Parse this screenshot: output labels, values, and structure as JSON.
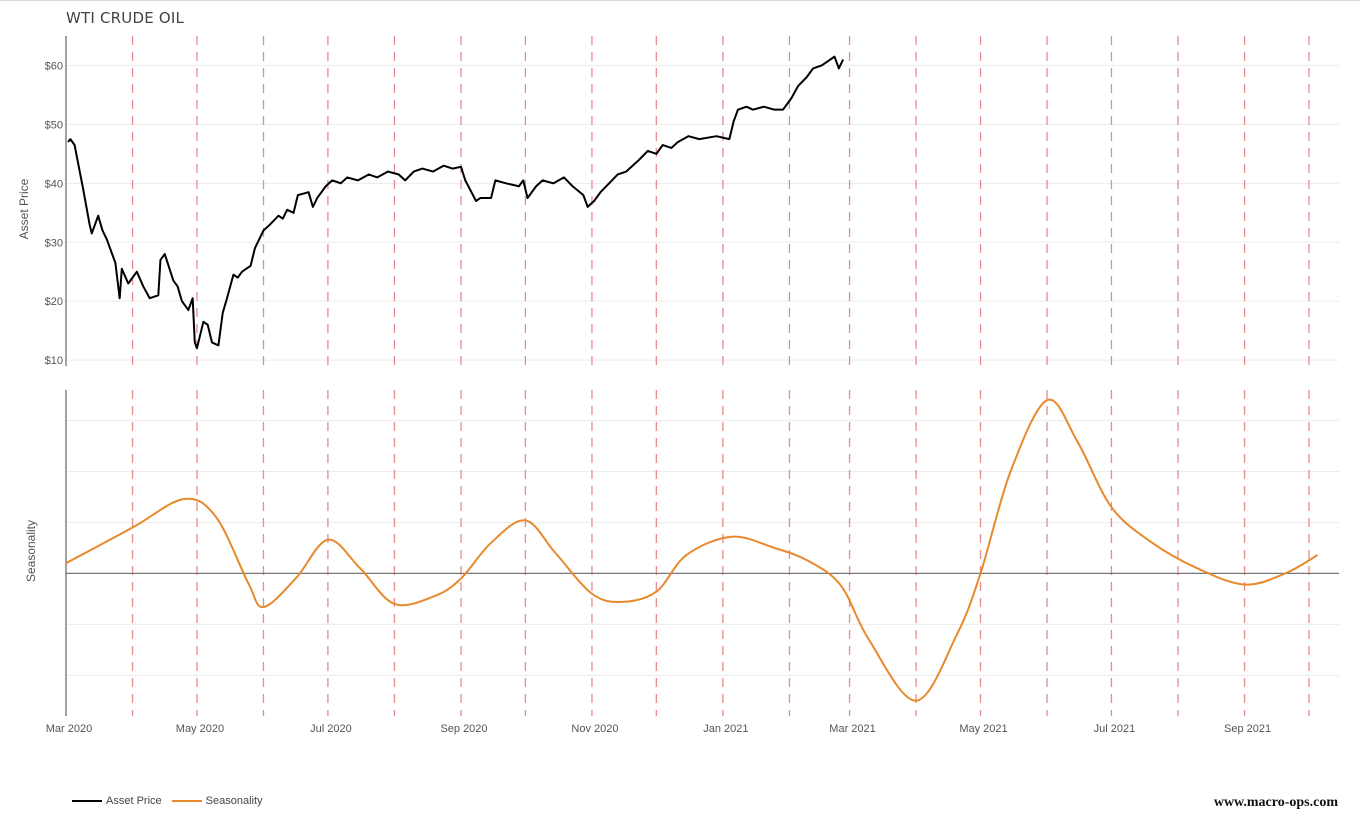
{
  "title": "WTI CRUDE OIL",
  "watermark": "www.macro-ops.com",
  "colors": {
    "asset_price": "#000000",
    "seasonality": "#e8892c",
    "month_marker": "#e58c8c",
    "grid": "#ececec",
    "zero_line": "#777777"
  },
  "chart_data": [
    {
      "type": "line",
      "panel": "top",
      "ylabel": "Asset Price",
      "y_ticks": [
        "$10",
        "$20",
        "$30",
        "$40",
        "$50",
        "$60"
      ],
      "ylim": [
        9,
        65
      ],
      "xlim": [
        "2020-03-01",
        "2021-10-15"
      ],
      "grid": true,
      "series": [
        {
          "name": "Asset Price",
          "points": [
            [
              "2020-03-02",
              47.0
            ],
            [
              "2020-03-03",
              47.5
            ],
            [
              "2020-03-05",
              46.5
            ],
            [
              "2020-03-09",
              39.0
            ],
            [
              "2020-03-12",
              33.0
            ],
            [
              "2020-03-13",
              31.5
            ],
            [
              "2020-03-16",
              34.5
            ],
            [
              "2020-03-18",
              32.0
            ],
            [
              "2020-03-20",
              30.5
            ],
            [
              "2020-03-24",
              26.5
            ],
            [
              "2020-03-26",
              20.5
            ],
            [
              "2020-03-27",
              25.5
            ],
            [
              "2020-03-30",
              23.0
            ],
            [
              "2020-04-03",
              25.0
            ],
            [
              "2020-04-06",
              22.5
            ],
            [
              "2020-04-09",
              20.5
            ],
            [
              "2020-04-13",
              21.0
            ],
            [
              "2020-04-14",
              27.0
            ],
            [
              "2020-04-16",
              28.0
            ],
            [
              "2020-04-20",
              23.5
            ],
            [
              "2020-04-22",
              22.5
            ],
            [
              "2020-04-24",
              20.0
            ],
            [
              "2020-04-27",
              18.5
            ],
            [
              "2020-04-29",
              20.5
            ],
            [
              "2020-04-30",
              13.0
            ],
            [
              "2020-05-01",
              12.0
            ],
            [
              "2020-05-04",
              16.5
            ],
            [
              "2020-05-06",
              16.0
            ],
            [
              "2020-05-08",
              13.0
            ],
            [
              "2020-05-11",
              12.5
            ],
            [
              "2020-05-13",
              18.0
            ],
            [
              "2020-05-15",
              20.5
            ],
            [
              "2020-05-18",
              24.5
            ],
            [
              "2020-05-20",
              24.0
            ],
            [
              "2020-05-22",
              25.0
            ],
            [
              "2020-05-26",
              26.0
            ],
            [
              "2020-05-28",
              29.0
            ],
            [
              "2020-06-01",
              32.0
            ],
            [
              "2020-06-04",
              33.0
            ],
            [
              "2020-06-08",
              34.5
            ],
            [
              "2020-06-10",
              34.0
            ],
            [
              "2020-06-12",
              35.5
            ],
            [
              "2020-06-15",
              35.0
            ],
            [
              "2020-06-17",
              38.0
            ],
            [
              "2020-06-22",
              38.5
            ],
            [
              "2020-06-24",
              36.0
            ],
            [
              "2020-06-26",
              37.5
            ],
            [
              "2020-06-30",
              39.5
            ],
            [
              "2020-07-03",
              40.5
            ],
            [
              "2020-07-07",
              40.0
            ],
            [
              "2020-07-10",
              41.0
            ],
            [
              "2020-07-15",
              40.5
            ],
            [
              "2020-07-20",
              41.5
            ],
            [
              "2020-07-24",
              41.0
            ],
            [
              "2020-07-29",
              42.0
            ],
            [
              "2020-08-03",
              41.5
            ],
            [
              "2020-08-06",
              40.5
            ],
            [
              "2020-08-10",
              42.0
            ],
            [
              "2020-08-14",
              42.5
            ],
            [
              "2020-08-19",
              42.0
            ],
            [
              "2020-08-24",
              43.0
            ],
            [
              "2020-08-28",
              42.5
            ],
            [
              "2020-09-01",
              42.8
            ],
            [
              "2020-09-03",
              40.5
            ],
            [
              "2020-09-08",
              37.0
            ],
            [
              "2020-09-10",
              37.5
            ],
            [
              "2020-09-15",
              37.5
            ],
            [
              "2020-09-17",
              40.5
            ],
            [
              "2020-09-22",
              40.0
            ],
            [
              "2020-09-28",
              39.5
            ],
            [
              "2020-09-30",
              40.5
            ],
            [
              "2020-10-02",
              37.5
            ],
            [
              "2020-10-06",
              39.5
            ],
            [
              "2020-10-09",
              40.5
            ],
            [
              "2020-10-14",
              40.0
            ],
            [
              "2020-10-19",
              41.0
            ],
            [
              "2020-10-23",
              39.5
            ],
            [
              "2020-10-28",
              38.0
            ],
            [
              "2020-10-30",
              36.0
            ],
            [
              "2020-11-02",
              37.0
            ],
            [
              "2020-11-05",
              38.5
            ],
            [
              "2020-11-09",
              40.0
            ],
            [
              "2020-11-13",
              41.5
            ],
            [
              "2020-11-17",
              42.0
            ],
            [
              "2020-11-23",
              44.0
            ],
            [
              "2020-11-27",
              45.5
            ],
            [
              "2020-12-01",
              45.0
            ],
            [
              "2020-12-04",
              46.5
            ],
            [
              "2020-12-08",
              46.0
            ],
            [
              "2020-12-11",
              47.0
            ],
            [
              "2020-12-16",
              48.0
            ],
            [
              "2020-12-21",
              47.5
            ],
            [
              "2020-12-29",
              48.0
            ],
            [
              "2021-01-04",
              47.5
            ],
            [
              "2021-01-06",
              50.5
            ],
            [
              "2021-01-08",
              52.5
            ],
            [
              "2021-01-12",
              53.0
            ],
            [
              "2021-01-15",
              52.5
            ],
            [
              "2021-01-20",
              53.0
            ],
            [
              "2021-01-25",
              52.5
            ],
            [
              "2021-01-29",
              52.5
            ],
            [
              "2021-02-02",
              54.5
            ],
            [
              "2021-02-05",
              56.5
            ],
            [
              "2021-02-09",
              58.0
            ],
            [
              "2021-02-12",
              59.5
            ],
            [
              "2021-02-16",
              60.0
            ],
            [
              "2021-02-18",
              60.5
            ],
            [
              "2021-02-22",
              61.5
            ],
            [
              "2021-02-24",
              59.5
            ],
            [
              "2021-02-26",
              61.0
            ]
          ]
        }
      ]
    },
    {
      "type": "line",
      "panel": "bottom",
      "ylabel": "Seasonality",
      "y_ticks": [],
      "ylim": [
        -1.4,
        1.8
      ],
      "xlim": [
        "2020-03-01",
        "2021-10-15"
      ],
      "zero_line": true,
      "grid": true,
      "x_ticks": [
        "Mar 2020",
        "May 2020",
        "Jul 2020",
        "Sep 2020",
        "Nov 2020",
        "Jan 2021",
        "Mar 2021",
        "May 2021",
        "Jul 2021",
        "Sep 2021"
      ],
      "x_tick_dates": [
        "2020-03-01",
        "2020-05-01",
        "2020-07-01",
        "2020-09-01",
        "2020-11-01",
        "2021-01-01",
        "2021-03-01",
        "2021-05-01",
        "2021-07-01",
        "2021-09-01"
      ],
      "month_markers": [
        "2020-04-01",
        "2020-05-01",
        "2020-06-01",
        "2020-07-01",
        "2020-08-01",
        "2020-09-01",
        "2020-10-01",
        "2020-11-01",
        "2020-12-01",
        "2021-01-01",
        "2021-02-01",
        "2021-03-01",
        "2021-04-01",
        "2021-05-01",
        "2021-06-01",
        "2021-07-01",
        "2021-08-01",
        "2021-09-01",
        "2021-10-01"
      ],
      "series": [
        {
          "name": "Seasonality",
          "points": [
            [
              "2020-03-01",
              0.1
            ],
            [
              "2020-04-01",
              0.45
            ],
            [
              "2020-04-25",
              0.73
            ],
            [
              "2020-05-10",
              0.55
            ],
            [
              "2020-05-25",
              -0.1
            ],
            [
              "2020-06-01",
              -0.33
            ],
            [
              "2020-06-16",
              -0.05
            ],
            [
              "2020-07-01",
              0.33
            ],
            [
              "2020-07-16",
              0.05
            ],
            [
              "2020-08-01",
              -0.3
            ],
            [
              "2020-08-20",
              -0.22
            ],
            [
              "2020-09-01",
              -0.05
            ],
            [
              "2020-09-15",
              0.3
            ],
            [
              "2020-10-01",
              0.52
            ],
            [
              "2020-10-15",
              0.2
            ],
            [
              "2020-11-01",
              -0.2
            ],
            [
              "2020-11-15",
              -0.28
            ],
            [
              "2020-12-01",
              -0.18
            ],
            [
              "2020-12-15",
              0.18
            ],
            [
              "2021-01-05",
              0.36
            ],
            [
              "2021-01-25",
              0.25
            ],
            [
              "2021-02-10",
              0.12
            ],
            [
              "2021-02-25",
              -0.12
            ],
            [
              "2021-03-10",
              -0.65
            ],
            [
              "2021-04-01",
              -1.25
            ],
            [
              "2021-04-20",
              -0.6
            ],
            [
              "2021-05-01",
              0.0
            ],
            [
              "2021-05-15",
              1.0
            ],
            [
              "2021-06-01",
              1.7
            ],
            [
              "2021-06-15",
              1.3
            ],
            [
              "2021-07-01",
              0.65
            ],
            [
              "2021-07-20",
              0.3
            ],
            [
              "2021-08-10",
              0.05
            ],
            [
              "2021-09-01",
              -0.11
            ],
            [
              "2021-09-20",
              0.0
            ],
            [
              "2021-10-05",
              0.18
            ]
          ]
        }
      ]
    }
  ],
  "legend": [
    {
      "label": "Asset Price",
      "color": "#000000"
    },
    {
      "label": "Seasonality",
      "color": "#e8892c"
    }
  ]
}
